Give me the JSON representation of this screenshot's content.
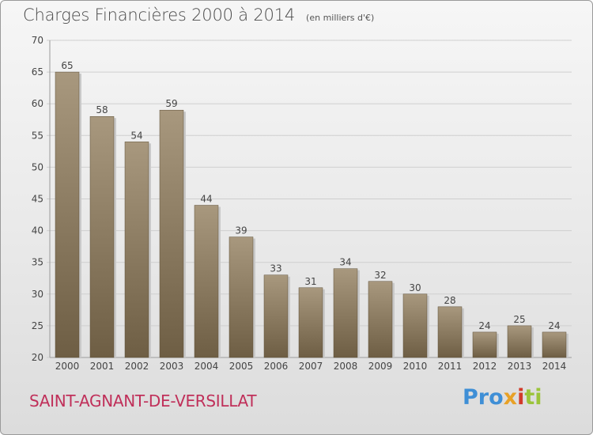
{
  "header": {
    "title": "Charges Financières 2000 à 2014",
    "unit": "(en milliers d'€)"
  },
  "footer": {
    "commune": "SAINT-AGNANT-DE-VERSILLAT",
    "brand_parts": [
      "Pro",
      "x",
      "i",
      "ti"
    ]
  },
  "colors": {
    "bar_light": "#a8987e",
    "bar_dark": "#6e5e44",
    "bar_shadow": "#c9c9c9",
    "grid": "#cfcfcf",
    "axis_text": "#444444",
    "commune": "#c0305a"
  },
  "chart_data": {
    "type": "bar",
    "title": "Charges Financières 2000 à 2014",
    "subtitle": "(en milliers d'€)",
    "xlabel": "",
    "ylabel": "",
    "categories": [
      "2000",
      "2001",
      "2002",
      "2003",
      "2004",
      "2005",
      "2006",
      "2007",
      "2008",
      "2009",
      "2010",
      "2011",
      "2012",
      "2013",
      "2014"
    ],
    "values": [
      65,
      58,
      54,
      59,
      44,
      39,
      33,
      31,
      34,
      32,
      30,
      28,
      24,
      25,
      24
    ],
    "ylim": [
      20,
      70
    ],
    "yticks": [
      20,
      25,
      30,
      35,
      40,
      45,
      50,
      55,
      60,
      65,
      70
    ],
    "grid": true,
    "data_labels": true
  }
}
